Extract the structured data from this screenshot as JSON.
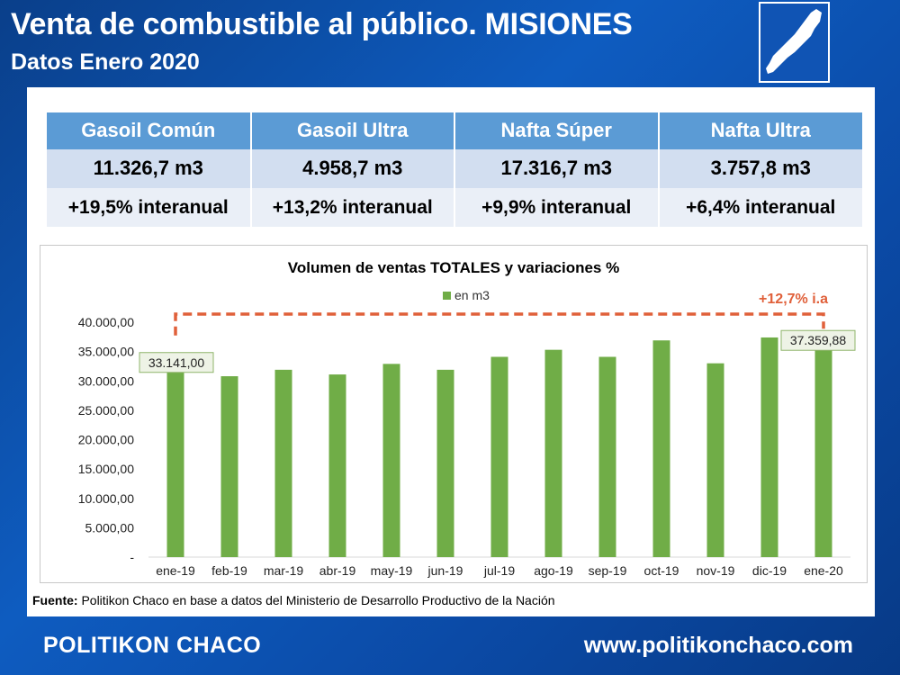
{
  "header": {
    "title": "Venta de combustible al público. MISIONES",
    "subtitle": "Datos Enero 2020"
  },
  "fuel_table": {
    "columns": [
      "Gasoil Común",
      "Gasoil Ultra",
      "Nafta Súper",
      "Nafta Ultra"
    ],
    "volumes": [
      "11.326,7 m3",
      "4.958,7 m3",
      "17.316,7 m3",
      "3.757,8 m3"
    ],
    "variations": [
      "+19,5% interanual",
      "+13,2% interanual",
      "+9,9% interanual",
      "+6,4% interanual"
    ]
  },
  "chart_data": {
    "type": "bar",
    "title": "Volumen de ventas TOTALES y variaciones %",
    "legend": "en m3",
    "categories": [
      "ene-19",
      "feb-19",
      "mar-19",
      "abr-19",
      "may-19",
      "jun-19",
      "jul-19",
      "ago-19",
      "sep-19",
      "oct-19",
      "nov-19",
      "dic-19",
      "ene-20"
    ],
    "values": [
      33141,
      30800,
      31900,
      31100,
      32900,
      31900,
      34100,
      35300,
      34100,
      36900,
      33000,
      37400,
      37359.88
    ],
    "ylim": [
      0,
      40000
    ],
    "yticks": [
      "-",
      "5.000,00",
      "10.000,00",
      "15.000,00",
      "20.000,00",
      "25.000,00",
      "30.000,00",
      "35.000,00",
      "40.000,00"
    ],
    "first_label": "33.141,00",
    "last_label": "37.359,88",
    "annotation": "+12,7% i.a",
    "bar_color": "#70ad47",
    "annotation_color": "#e0603a"
  },
  "source": {
    "label": "Fuente:",
    "text": " Politikon Chaco en base a datos del Ministerio de Desarrollo Productivo de la Nación"
  },
  "footer": {
    "brand": "POLITIKON CHACO",
    "url": "www.politikonchaco.com"
  }
}
